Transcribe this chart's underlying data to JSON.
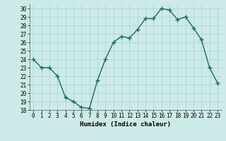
{
  "x": [
    0,
    1,
    2,
    3,
    4,
    5,
    6,
    7,
    8,
    9,
    10,
    11,
    12,
    13,
    14,
    15,
    16,
    17,
    18,
    19,
    20,
    21,
    22,
    23
  ],
  "y": [
    24,
    23,
    23,
    22,
    19.5,
    19,
    18.3,
    18.2,
    21.5,
    24,
    26,
    26.7,
    26.5,
    27.5,
    28.8,
    28.8,
    30,
    29.8,
    28.7,
    29,
    27.7,
    26.3,
    23,
    21.2
  ],
  "line_color": "#1a6b5e",
  "marker": "+",
  "marker_size": 4,
  "bg_color": "#cceae7",
  "grid_color": "#aad4d0",
  "xlabel": "Humidex (Indice chaleur)",
  "xlim": [
    -0.5,
    23.5
  ],
  "ylim": [
    18,
    30.5
  ],
  "yticks": [
    18,
    19,
    20,
    21,
    22,
    23,
    24,
    25,
    26,
    27,
    28,
    29,
    30
  ],
  "xticks": [
    0,
    1,
    2,
    3,
    4,
    5,
    6,
    7,
    8,
    9,
    10,
    11,
    12,
    13,
    14,
    15,
    16,
    17,
    18,
    19,
    20,
    21,
    22,
    23
  ],
  "tick_label_fontsize": 5.5,
  "xlabel_fontsize": 6.5,
  "line_width": 1.0,
  "marker_color": "#1a6b5e"
}
